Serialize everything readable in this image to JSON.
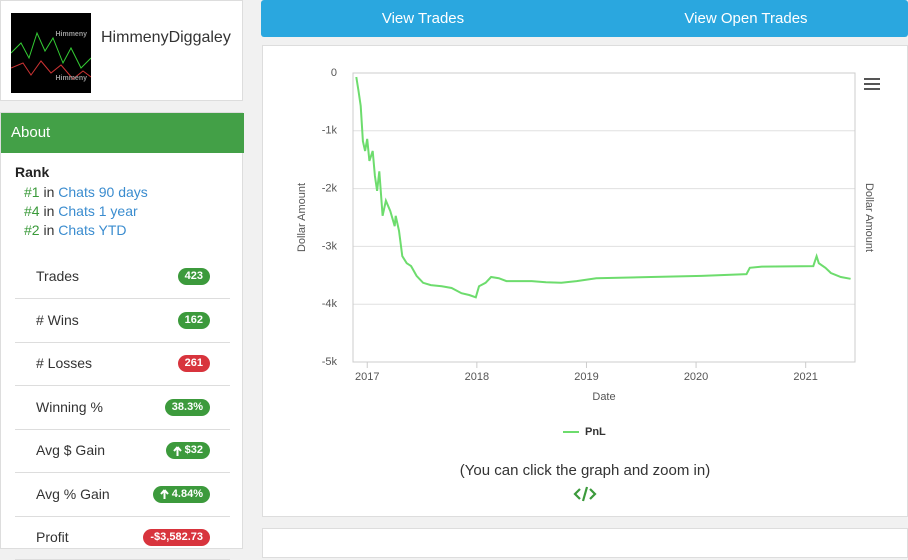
{
  "profile": {
    "name": "HimmenyDiggaley",
    "avatar_text": [
      "Himmeny",
      "Himmeny"
    ]
  },
  "nav": {
    "tabs": [
      "View Trades",
      "View Open Trades"
    ]
  },
  "about": {
    "title": "About",
    "rank_label": "Rank",
    "ranks": [
      {
        "position": "#1",
        "connector": "in",
        "link": "Chats 90 days"
      },
      {
        "position": "#4",
        "connector": "in",
        "link": "Chats 1 year"
      },
      {
        "position": "#2",
        "connector": "in",
        "link": "Chats YTD"
      }
    ],
    "stats": [
      {
        "label": "Trades",
        "value": "423",
        "tone": "good"
      },
      {
        "label": "# Wins",
        "value": "162",
        "tone": "good"
      },
      {
        "label": "# Losses",
        "value": "261",
        "tone": "bad"
      },
      {
        "label": "Winning %",
        "value": "38.3%",
        "tone": "good"
      },
      {
        "label": "Avg $ Gain",
        "value": "$32",
        "tone": "good",
        "arrow": true
      },
      {
        "label": "Avg % Gain",
        "value": "4.84%",
        "tone": "good",
        "arrow": true
      },
      {
        "label": "Profit",
        "value": "-$3,582.73",
        "tone": "bad"
      }
    ]
  },
  "chart_data": {
    "type": "line",
    "x": [
      2016.9,
      2016.92,
      2016.94,
      2016.96,
      2016.98,
      2017.0,
      2017.02,
      2017.05,
      2017.07,
      2017.09,
      2017.11,
      2017.14,
      2017.17,
      2017.21,
      2017.25,
      2017.26,
      2017.29,
      2017.32,
      2017.36,
      2017.4,
      2017.45,
      2017.51,
      2017.58,
      2017.68,
      2017.77,
      2017.86,
      2017.93,
      2017.99,
      2018.02,
      2018.08,
      2018.13,
      2018.2,
      2018.27,
      2018.5,
      2018.63,
      2018.77,
      2018.91,
      2019.09,
      2019.59,
      2020.05,
      2020.46,
      2020.49,
      2020.6,
      2021.07,
      2021.1,
      2021.12,
      2021.18,
      2021.23,
      2021.32,
      2021.41
    ],
    "series": [
      {
        "name": "PnL",
        "color": "#6ddc6d",
        "values": [
          -70,
          -310,
          -570,
          -1180,
          -1350,
          -1140,
          -1520,
          -1350,
          -1780,
          -2040,
          -1700,
          -2470,
          -2210,
          -2390,
          -2650,
          -2470,
          -2730,
          -3170,
          -3290,
          -3340,
          -3510,
          -3630,
          -3670,
          -3690,
          -3720,
          -3810,
          -3840,
          -3880,
          -3690,
          -3630,
          -3530,
          -3550,
          -3600,
          -3600,
          -3620,
          -3630,
          -3600,
          -3550,
          -3530,
          -3510,
          -3480,
          -3370,
          -3350,
          -3340,
          -3170,
          -3290,
          -3370,
          -3460,
          -3530,
          -3560
        ]
      }
    ],
    "xlim": [
      2016.87,
      2021.45
    ],
    "xticks": [
      2017,
      2018,
      2019,
      2020,
      2021
    ],
    "ylim": [
      -5000,
      0
    ],
    "yticks": [
      {
        "value": -5000,
        "label": "-5k"
      },
      {
        "value": -4000,
        "label": "-4k"
      },
      {
        "value": -3000,
        "label": "-3k"
      },
      {
        "value": -2000,
        "label": "-2k"
      },
      {
        "value": -1000,
        "label": "-1k"
      },
      0
    ],
    "x_label": "Date",
    "y_label": "Dollar Amount",
    "y2_label": "Dollar Amount",
    "grid": true,
    "legend": "bottom"
  },
  "chart_note": "(You can click the graph and zoom in)"
}
